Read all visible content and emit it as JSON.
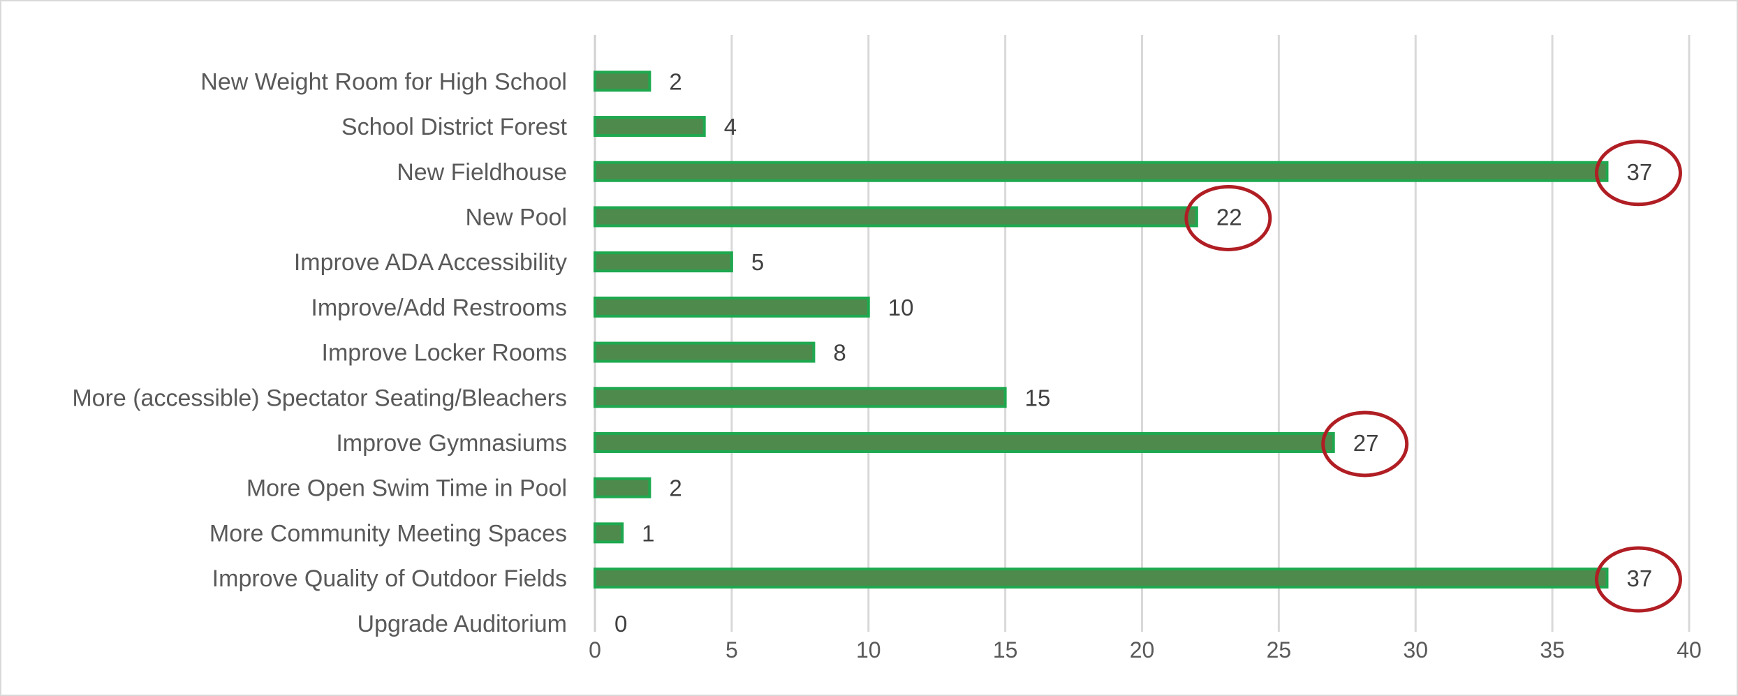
{
  "chart_data": {
    "type": "bar",
    "orientation": "horizontal",
    "title": "",
    "xlabel": "",
    "ylabel": "",
    "xlim": [
      0,
      40
    ],
    "ticks": [
      0,
      5,
      10,
      15,
      20,
      25,
      30,
      35,
      40
    ],
    "grid": "vertical",
    "categories": [
      "New Weight Room for High School",
      "School District Forest",
      "New Fieldhouse",
      "New Pool",
      "Improve ADA Accessibility",
      "Improve/Add Restrooms",
      "Improve Locker Rooms",
      "More (accessible) Spectator Seating/Bleachers",
      "Improve Gymnasiums",
      "More Open Swim Time in Pool",
      "More Community Meeting Spaces",
      "Improve Quality of Outdoor Fields",
      "Upgrade Auditorium"
    ],
    "values": [
      2,
      4,
      37,
      22,
      5,
      10,
      8,
      15,
      27,
      2,
      1,
      37,
      0
    ],
    "highlighted": [
      "New Fieldhouse",
      "New Pool",
      "Improve Gymnasiums",
      "Improve Quality of Outdoor Fields"
    ],
    "colors": {
      "bar_fill": "#4e8a4b",
      "bar_border": "#1ea84f",
      "gridline": "#d9d9d9",
      "highlight_circle": "#b01e24",
      "text": "#595959"
    }
  }
}
